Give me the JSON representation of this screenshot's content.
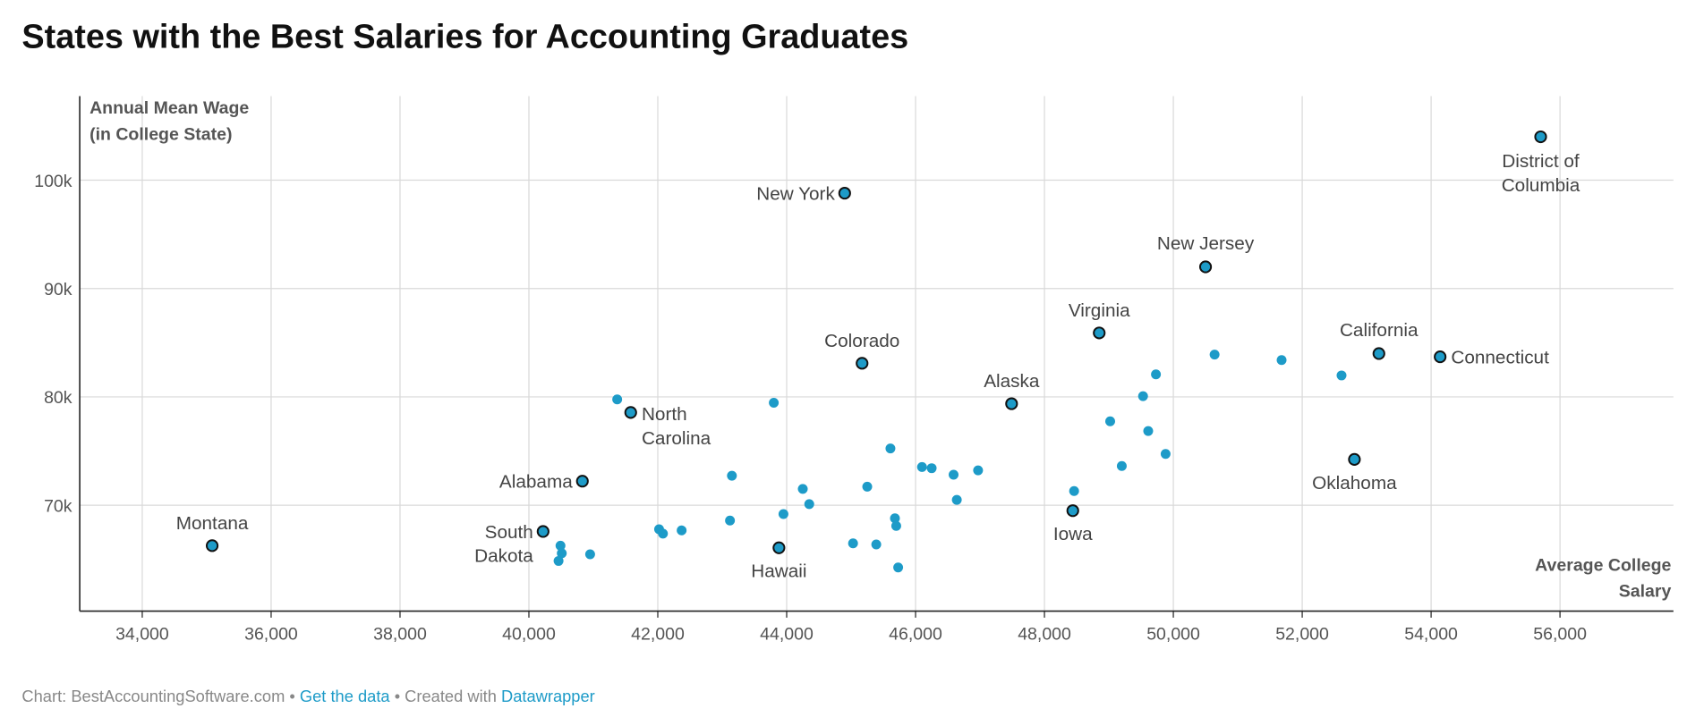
{
  "title": "States with the Best Salaries for Accounting Graduates",
  "footer": {
    "prefix": "Chart: BestAccountingSoftware.com • ",
    "data_link": "Get the data",
    "middle": " • Created with ",
    "tool_link": "Datawrapper"
  },
  "colors": {
    "dot": "#1d9bc8",
    "highlight_stroke": "#111111",
    "link": "#1d9bc8"
  },
  "chart_data": {
    "type": "scatter",
    "title": "States with the Best Salaries for Accounting Graduates",
    "ylabel_lines": [
      "Annual Mean Wage",
      "(in College State)"
    ],
    "xlabel_lines": [
      "Average College",
      "Salary"
    ],
    "xlim": [
      33030,
      57760
    ],
    "ylim": [
      60230,
      107760
    ],
    "x_ticks": [
      34000,
      36000,
      38000,
      40000,
      42000,
      44000,
      46000,
      48000,
      50000,
      52000,
      54000,
      56000
    ],
    "x_tick_labels": [
      "34,000",
      "36,000",
      "38,000",
      "40,000",
      "42,000",
      "44,000",
      "46,000",
      "48,000",
      "50,000",
      "52,000",
      "54,000",
      "56,000"
    ],
    "y_ticks": [
      70000,
      80000,
      90000,
      100000
    ],
    "y_tick_labels": [
      "70k",
      "80k",
      "90k",
      "100k"
    ],
    "grid": true,
    "labeled_points": [
      {
        "name": "District of Columbia",
        "x": 55700,
        "y": 104000
      },
      {
        "name": "New York",
        "x": 44900,
        "y": 98800
      },
      {
        "name": "New Jersey",
        "x": 50500,
        "y": 92000
      },
      {
        "name": "Virginia",
        "x": 48850,
        "y": 85900
      },
      {
        "name": "Colorado",
        "x": 45170,
        "y": 83100
      },
      {
        "name": "California",
        "x": 53190,
        "y": 84000
      },
      {
        "name": "Connecticut",
        "x": 54140,
        "y": 83700
      },
      {
        "name": "Alaska",
        "x": 47490,
        "y": 79370
      },
      {
        "name": "North Carolina",
        "x": 41580,
        "y": 78560
      },
      {
        "name": "Oklahoma",
        "x": 52810,
        "y": 74230
      },
      {
        "name": "Alabama",
        "x": 40830,
        "y": 72220
      },
      {
        "name": "Iowa",
        "x": 48440,
        "y": 69500
      },
      {
        "name": "Montana",
        "x": 35085,
        "y": 66270
      },
      {
        "name": "South Dakota",
        "x": 40220,
        "y": 67580
      },
      {
        "name": "Hawaii",
        "x": 43880,
        "y": 66070
      }
    ],
    "other_points": [
      [
        41370,
        79770
      ],
      [
        43800,
        79460
      ],
      [
        50640,
        83900
      ],
      [
        51680,
        83400
      ],
      [
        52610,
        81980
      ],
      [
        49730,
        82080
      ],
      [
        49530,
        80070
      ],
      [
        49020,
        77750
      ],
      [
        49610,
        76850
      ],
      [
        49880,
        74730
      ],
      [
        49200,
        73620
      ],
      [
        45610,
        75240
      ],
      [
        46100,
        73530
      ],
      [
        46250,
        73420
      ],
      [
        46590,
        72820
      ],
      [
        46970,
        73220
      ],
      [
        43150,
        72720
      ],
      [
        44250,
        71510
      ],
      [
        45250,
        71710
      ],
      [
        44350,
        70100
      ],
      [
        46640,
        70500
      ],
      [
        48460,
        71310
      ],
      [
        43950,
        69190
      ],
      [
        43120,
        68590
      ],
      [
        45680,
        68790
      ],
      [
        45700,
        68090
      ],
      [
        42020,
        67780
      ],
      [
        42080,
        67380
      ],
      [
        42370,
        67680
      ],
      [
        45030,
        66480
      ],
      [
        45390,
        66380
      ],
      [
        45730,
        64260
      ],
      [
        40490,
        66270
      ],
      [
        40510,
        65570
      ],
      [
        40460,
        64860
      ],
      [
        40950,
        65470
      ]
    ]
  }
}
